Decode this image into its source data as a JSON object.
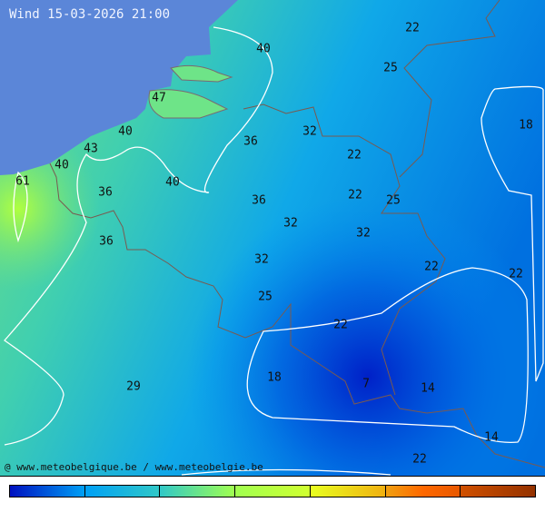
{
  "title": "Wind 15-03-2026 21:00",
  "credit": "@ www.meteobelgique.be / www.meteobelgie.be",
  "colors": {
    "sea": "#5b86d8",
    "border": "#7a5a50",
    "contour": "#ffffff"
  },
  "values": [
    "22",
    "40",
    "25",
    "47",
    "18",
    "40",
    "36",
    "32",
    "43",
    "22",
    "40",
    "61",
    "36",
    "40",
    "36",
    "22",
    "25",
    "32",
    "32",
    "36",
    "32",
    "22",
    "22",
    "25",
    "22",
    "18",
    "7",
    "14",
    "29",
    "14",
    "22"
  ],
  "colorbar": [
    [
      "#0010c0",
      "#00a0f5"
    ],
    [
      "#00a0f5",
      "#30c8c8"
    ],
    [
      "#30c8c8",
      "#a0ff50"
    ],
    [
      "#a0ff50",
      "#d0ff30"
    ],
    [
      "#e8ff20",
      "#f0b010"
    ],
    [
      "#f0a010",
      "#ff6800",
      "#e85800"
    ],
    [
      "#d05000",
      "#943200"
    ]
  ]
}
